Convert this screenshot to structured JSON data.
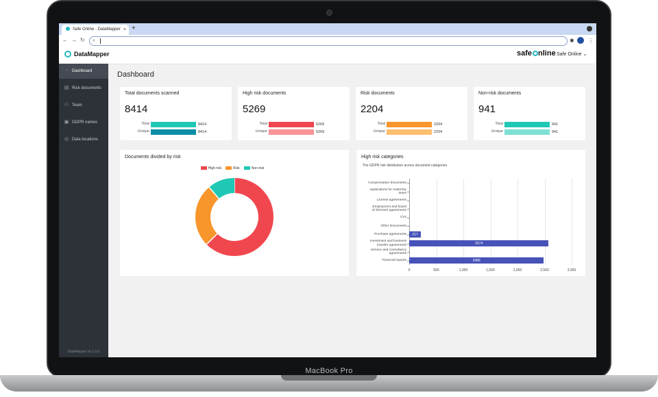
{
  "laptop": {
    "brand": "MacBook Pro"
  },
  "browser": {
    "tab_title": "Safe Online - DataMapper",
    "tab_close": "×",
    "new_tab": "+",
    "back": "←",
    "forward": "→",
    "reload": "↻",
    "extensions_icon": "✱"
  },
  "app": {
    "name": "DataMapper",
    "logo_pre": "safe",
    "logo_post": "nline",
    "org": "Safe Online",
    "org_caret": "⌄",
    "version": "DataMapper v0.1.0.0",
    "colors": {
      "accent": "#26b8c4",
      "sidebar": "#2d3138",
      "high": "#f0474f",
      "risk": "#f8952b",
      "nonrisk": "#1ec8b5",
      "bar": "#4753b8"
    }
  },
  "sidebar": {
    "items": [
      {
        "label": "Dashboard",
        "icon": "gauge-icon",
        "glyph": "◔",
        "active": true
      },
      {
        "label": "Risk documents",
        "icon": "chart-icon",
        "glyph": "▤",
        "active": false
      },
      {
        "label": "Team",
        "icon": "team-icon",
        "glyph": "⚇",
        "active": false
      },
      {
        "label": "GDPR names",
        "icon": "id-card-icon",
        "glyph": "▣",
        "active": false
      },
      {
        "label": "Data locations",
        "icon": "location-icon",
        "glyph": "◎",
        "active": false
      }
    ]
  },
  "page": {
    "title": "Dashboard"
  },
  "stats": [
    {
      "title": "Total documents scanned",
      "value": "8414",
      "total_label": "Total",
      "total": "8414",
      "unique_label": "Unique",
      "unique": "8414",
      "total_color": "#1ec8b5",
      "unique_color": "#0b8fa6",
      "total_frac": 1.0,
      "unique_frac": 1.0
    },
    {
      "title": "High risk documents",
      "value": "5269",
      "total_label": "Total",
      "total": "5269",
      "unique_label": "Unique",
      "unique": "5269",
      "total_color": "#f0474f",
      "unique_color": "#f99498",
      "total_frac": 1.0,
      "unique_frac": 1.0
    },
    {
      "title": "Risk documents",
      "value": "2204",
      "total_label": "Total",
      "total": "2204",
      "unique_label": "Unique",
      "unique": "2204",
      "total_color": "#f8952b",
      "unique_color": "#fbbf6f",
      "total_frac": 1.0,
      "unique_frac": 1.0
    },
    {
      "title": "Non-risk documents",
      "value": "941",
      "total_label": "Total",
      "total": "941",
      "unique_label": "Unique",
      "unique": "941",
      "total_color": "#1ec8b5",
      "unique_color": "#7fe0d3",
      "total_frac": 1.0,
      "unique_frac": 1.0
    }
  ],
  "donut_card": {
    "title": "Documents divided by risk"
  },
  "bar_card": {
    "title": "High risk categories",
    "subtitle": "The GDPR risk distribution across document categories"
  },
  "chart_data": [
    {
      "type": "pie",
      "title": "Documents divided by risk",
      "series": [
        {
          "name": "High risk",
          "value": 5269,
          "color": "#f0474f"
        },
        {
          "name": "Risk",
          "value": 2204,
          "color": "#f8952b"
        },
        {
          "name": "Non-risk",
          "value": 941,
          "color": "#1ec8b5"
        }
      ],
      "legend": "top"
    },
    {
      "type": "bar",
      "orientation": "horizontal",
      "title": "High risk categories",
      "categories": [
        [
          "Compensation documents"
        ],
        [
          "Applications for maternity",
          "leave"
        ],
        [
          "License agreements"
        ],
        [
          "Employment and board",
          "of directors agreements"
        ],
        [
          "CVs"
        ],
        [
          "Other Documents"
        ],
        [
          "Purchase agreements"
        ],
        [
          "Investment and business",
          "transfer agreements"
        ],
        [
          "Service and consultancy",
          "agreements"
        ],
        [
          "Financial reports"
        ]
      ],
      "values": [
        0,
        0,
        0,
        0,
        0,
        0,
        217,
        2574,
        0,
        2486
      ],
      "value_labels": [
        "",
        "",
        "",
        "",
        "",
        "",
        "217",
        "2574",
        "",
        "2486"
      ],
      "xlim": [
        0,
        3000
      ],
      "xticks": [
        "0",
        "500",
        "1,000",
        "1,500",
        "2,000",
        "2,500",
        "3,000"
      ],
      "xtick_values": [
        0,
        500,
        1000,
        1500,
        2000,
        2500,
        3000
      ],
      "grid": true
    }
  ]
}
